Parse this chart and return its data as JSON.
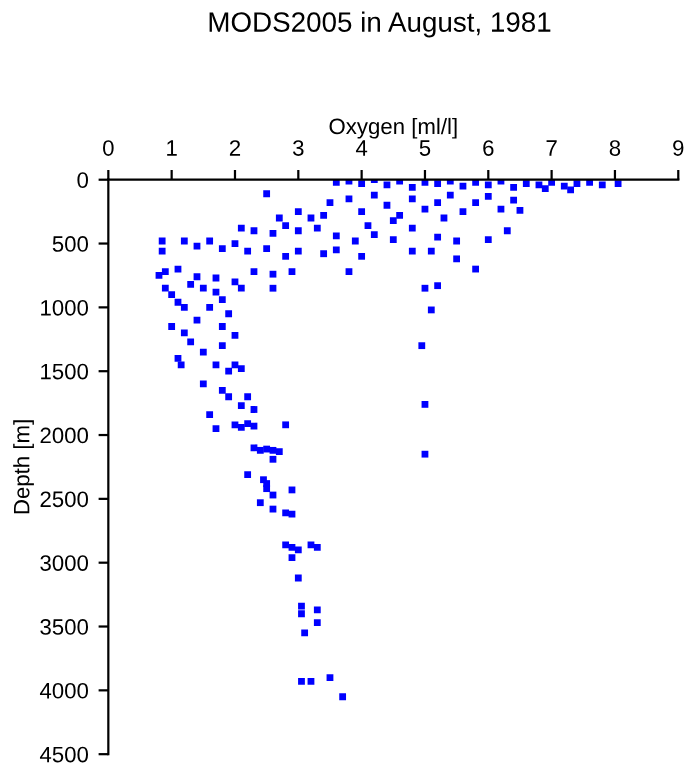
{
  "chart_data": {
    "type": "scatter",
    "title": "MODS2005 in August, 1981",
    "xlabel": "Oxygen [ml/l]",
    "ylabel": "Depth [m]",
    "xlim": [
      0,
      9
    ],
    "xticks": [
      0,
      1,
      2,
      3,
      4,
      5,
      6,
      7,
      8,
      9
    ],
    "ylim": [
      4500,
      0
    ],
    "yticks": [
      0,
      500,
      1000,
      1500,
      2000,
      2500,
      3000,
      3500,
      4000,
      4500
    ],
    "grid": false,
    "marker": "square",
    "series": [
      {
        "color": "#0000ff",
        "x": [
          3.6,
          3.8,
          4.0,
          4.2,
          4.4,
          4.6,
          4.8,
          5.0,
          5.2,
          5.4,
          5.6,
          5.8,
          6.0,
          6.2,
          6.4,
          6.6,
          6.8,
          7.0,
          7.2,
          7.4,
          7.6,
          7.8,
          8.05,
          6.9,
          7.3,
          3.5,
          3.8,
          4.0,
          4.2,
          4.4,
          4.6,
          4.8,
          5.0,
          5.2,
          5.4,
          5.6,
          5.8,
          6.0,
          6.2,
          6.4,
          6.5,
          3.0,
          3.2,
          2.5,
          2.7,
          3.4,
          4.5,
          5.3,
          2.1,
          2.3,
          2.6,
          2.8,
          3.0,
          3.3,
          3.6,
          3.9,
          4.2,
          4.5,
          4.8,
          5.2,
          5.5,
          6.0,
          6.3,
          4.1,
          0.85,
          0.85,
          1.2,
          1.4,
          1.6,
          1.8,
          2.0,
          2.2,
          2.5,
          2.8,
          3.0,
          3.4,
          3.6,
          4.0,
          3.8,
          2.9,
          2.6,
          2.3,
          2.0,
          1.7,
          1.4,
          1.1,
          0.8,
          0.9,
          2.6,
          2.1,
          5.1,
          5.5,
          4.8,
          5.8,
          5.2,
          0.9,
          1.0,
          1.1,
          1.3,
          1.5,
          1.7,
          1.8,
          1.2,
          1.6,
          1.9,
          1.0,
          1.2,
          1.4,
          1.8,
          2.0,
          1.3,
          1.5,
          1.8,
          1.1,
          1.15,
          1.7,
          2.0,
          2.1,
          1.9,
          1.5,
          1.8,
          1.9,
          2.2,
          2.3,
          2.1,
          1.6,
          1.7,
          2.0,
          2.1,
          2.2,
          2.3,
          2.8,
          2.3,
          2.4,
          2.5,
          2.6,
          2.7,
          2.6,
          2.2,
          2.45,
          2.5,
          2.5,
          2.9,
          2.4,
          2.6,
          2.6,
          2.8,
          2.9,
          2.8,
          2.9,
          3.0,
          3.3,
          3.2,
          2.9,
          3.0,
          3.05,
          3.05,
          3.3,
          3.3,
          3.1,
          3.05,
          3.2,
          3.5,
          3.7,
          5.0,
          4.95,
          5.1,
          5.0,
          5.0
        ],
        "values": [
          20,
          10,
          30,
          0,
          40,
          10,
          60,
          20,
          30,
          10,
          50,
          20,
          40,
          10,
          60,
          30,
          40,
          20,
          50,
          30,
          20,
          40,
          30,
          70,
          80,
          180,
          150,
          250,
          120,
          200,
          280,
          150,
          230,
          180,
          120,
          250,
          180,
          130,
          230,
          160,
          240,
          250,
          300,
          110,
          300,
          280,
          320,
          300,
          380,
          400,
          420,
          360,
          400,
          380,
          440,
          480,
          430,
          470,
          380,
          450,
          480,
          470,
          400,
          360,
          480,
          560,
          480,
          520,
          480,
          540,
          500,
          560,
          540,
          600,
          560,
          580,
          550,
          600,
          720,
          720,
          740,
          720,
          800,
          770,
          760,
          700,
          750,
          720,
          850,
          850,
          560,
          620,
          560,
          700,
          830,
          850,
          900,
          960,
          820,
          850,
          880,
          940,
          1000,
          1000,
          1050,
          1150,
          1200,
          1100,
          1150,
          1220,
          1270,
          1350,
          1300,
          1400,
          1450,
          1450,
          1450,
          1480,
          1500,
          1600,
          1650,
          1700,
          1700,
          1800,
          1770,
          1840,
          1950,
          1920,
          1940,
          1910,
          1930,
          1920,
          2100,
          2120,
          2110,
          2120,
          2130,
          2190,
          2310,
          2350,
          2380,
          2420,
          2430,
          2530,
          2470,
          2580,
          2610,
          2620,
          2860,
          2880,
          2900,
          2880,
          2860,
          2960,
          3120,
          3340,
          3400,
          3370,
          3470,
          3550,
          3930,
          3930,
          3900,
          4050,
          1760,
          1300,
          1020,
          850,
          2150
        ]
      }
    ]
  }
}
